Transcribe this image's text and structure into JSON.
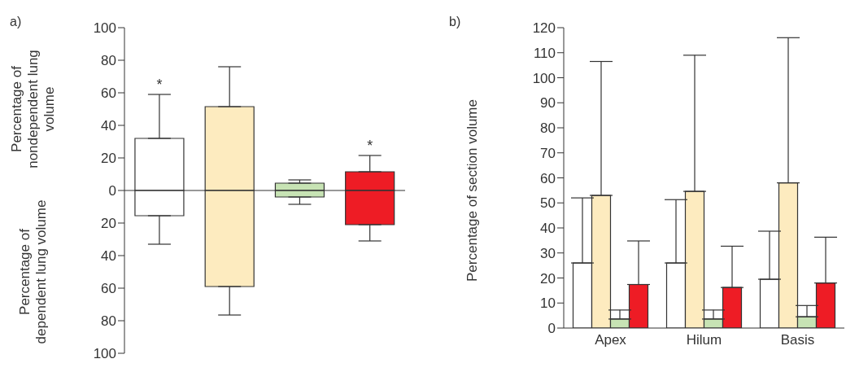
{
  "chart_data": [
    {
      "type": "bar",
      "title": "a)",
      "ylabel": "Percentage of nondependent lung volume",
      "annotations": [
        "Percentage of dependent  lung volume"
      ],
      "categories": [
        null,
        null,
        null,
        null
      ],
      "stacked": true,
      "tick_labels": "y",
      "series": [
        {
          "colors": [
            "#ffffff",
            "#fdebbf",
            "#c7e3b4",
            "#ee1c25"
          ],
          "values": [
            32,
            51.5,
            4.5,
            11.5
          ],
          "errors": [
            [
              32,
              59
            ],
            [
              51.5,
              76
            ],
            [
              4.5,
              6.5
            ],
            [
              11.5,
              21.5
            ]
          ],
          "value_labels": [
            "*",
            null,
            null,
            "*"
          ]
        },
        {
          "colors": [
            "#ffffff",
            "#fdebbf",
            "#c7e3b4",
            "#ee1c25"
          ],
          "values": [
            -15.5,
            -59,
            -4,
            -21
          ],
          "errors": [
            [
              -33,
              -15.5
            ],
            [
              -76.5,
              -59
            ],
            [
              -8.5,
              -4
            ],
            [
              -31,
              -21
            ]
          ]
        }
      ],
      "ylim": [
        -100,
        100
      ],
      "yticks": [
        {
          "value": -100,
          "label": "100"
        },
        {
          "value": -80,
          "label": "80"
        },
        {
          "value": -60,
          "label": "60"
        },
        {
          "value": -40,
          "label": "40"
        },
        {
          "value": -20,
          "label": "20"
        },
        0,
        20,
        40,
        60,
        80,
        100
      ],
      "ref_lines": [
        {
          "axis": "y",
          "value": 0,
          "color": "#333333"
        }
      ]
    },
    {
      "type": "bar",
      "title": "b)",
      "ylabel": "Percentage of section volume",
      "categories": [
        "Apex",
        "Hilum",
        "Basis"
      ],
      "series": [
        {
          "color": "#ffffff",
          "values": [
            26,
            26,
            19.5
          ],
          "errors": [
            [
              26,
              52
            ],
            [
              26,
              51.3
            ],
            [
              19.5,
              38.7
            ]
          ]
        },
        {
          "color": "#fdebbf",
          "values": [
            53,
            54.6,
            58
          ],
          "errors": [
            [
              53,
              106.5
            ],
            [
              54.6,
              109
            ],
            [
              58,
              116
            ]
          ]
        },
        {
          "color": "#c7e3b4",
          "values": [
            3.6,
            3.6,
            4.5
          ],
          "errors": [
            [
              3.6,
              7.2
            ],
            [
              3.6,
              7.2
            ],
            [
              4.5,
              9
            ]
          ]
        },
        {
          "color": "#ee1c25",
          "values": [
            17.4,
            16.2,
            18
          ],
          "errors": [
            [
              17.4,
              34.8
            ],
            [
              16.2,
              32.7
            ],
            [
              18,
              36.3
            ]
          ]
        }
      ],
      "ylim": [
        0,
        120
      ],
      "yticks": [
        0,
        10,
        20,
        30,
        40,
        50,
        60,
        70,
        80,
        90,
        100,
        110,
        120
      ]
    }
  ]
}
